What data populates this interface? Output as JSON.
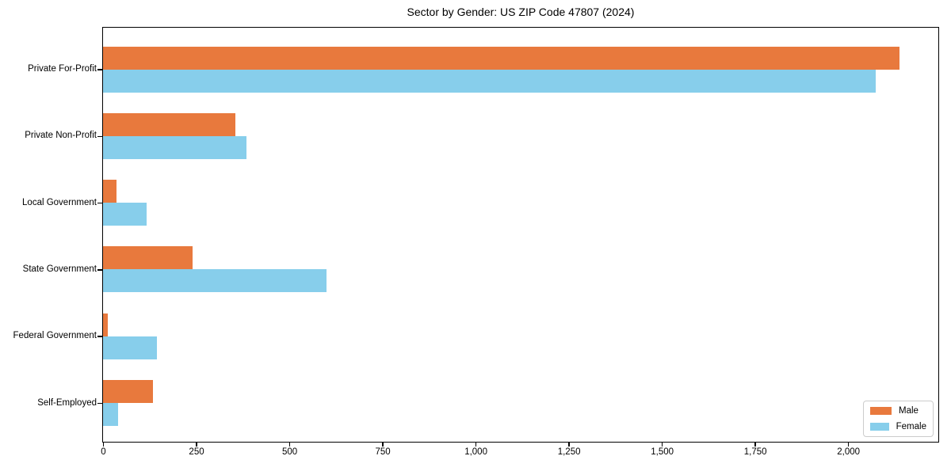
{
  "title": "Sector by Gender: US ZIP Code 47807 (2024)",
  "chart_data": {
    "type": "bar",
    "orientation": "horizontal",
    "title": "Sector by Gender: US ZIP Code 47807 (2024)",
    "categories": [
      "Private For-Profit",
      "Private Non-Profit",
      "Local Government",
      "State Government",
      "Federal Government",
      "Self-Employed"
    ],
    "series": [
      {
        "name": "Male",
        "color": "#e8793d",
        "values": [
          2137,
          355,
          36,
          240,
          13,
          134
        ]
      },
      {
        "name": "Female",
        "color": "#87ceeb",
        "values": [
          2075,
          384,
          117,
          599,
          144,
          41
        ]
      }
    ],
    "xlabel": "",
    "ylabel": "",
    "xlim": [
      0,
      2240
    ],
    "xticks": [
      0,
      250,
      500,
      750,
      1000,
      1250,
      1500,
      1750,
      2000
    ],
    "xtick_labels": [
      "0",
      "250",
      "500",
      "750",
      "1,000",
      "1,250",
      "1,500",
      "1,750",
      "2,000"
    ],
    "grid": false,
    "legend_position": "lower right"
  }
}
